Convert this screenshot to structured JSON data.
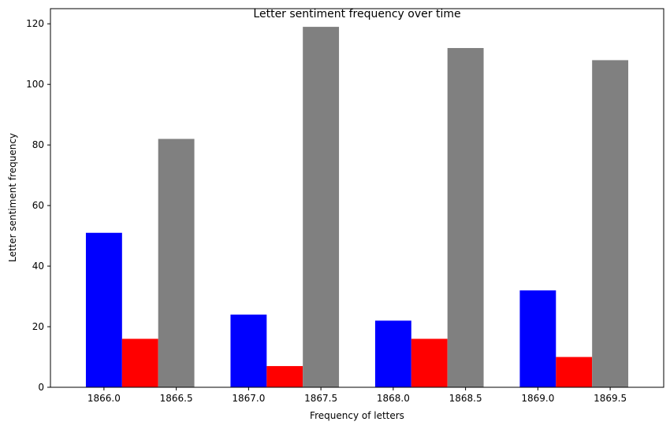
{
  "chart_data": {
    "type": "bar",
    "title": "Letter sentiment frequency over time",
    "xlabel": "Frequency of letters",
    "ylabel": "Letter sentiment frequency",
    "x_ticks": [
      "1866.0",
      "1866.5",
      "1867.0",
      "1867.5",
      "1868.0",
      "1868.5",
      "1869.0",
      "1869.5"
    ],
    "x_tick_values": [
      1866.0,
      1866.5,
      1867.0,
      1867.5,
      1868.0,
      1868.5,
      1869.0,
      1869.5
    ],
    "y_ticks": [
      "0",
      "20",
      "40",
      "60",
      "80",
      "100",
      "120"
    ],
    "y_tick_values": [
      0,
      20,
      40,
      60,
      80,
      100,
      120
    ],
    "xlim": [
      1865.63,
      1869.87
    ],
    "ylim": [
      0,
      125
    ],
    "grid": false,
    "categories": [
      1866,
      1867,
      1868,
      1869
    ],
    "bar_width": 0.25,
    "series": [
      {
        "color": "#0000ff",
        "offset": 0.0,
        "values": [
          51,
          24,
          22,
          32
        ]
      },
      {
        "color": "#ff0000",
        "offset": 0.25,
        "values": [
          16,
          7,
          16,
          10
        ]
      },
      {
        "color": "#808080",
        "offset": 0.5,
        "values": [
          82,
          119,
          112,
          108
        ]
      }
    ]
  }
}
